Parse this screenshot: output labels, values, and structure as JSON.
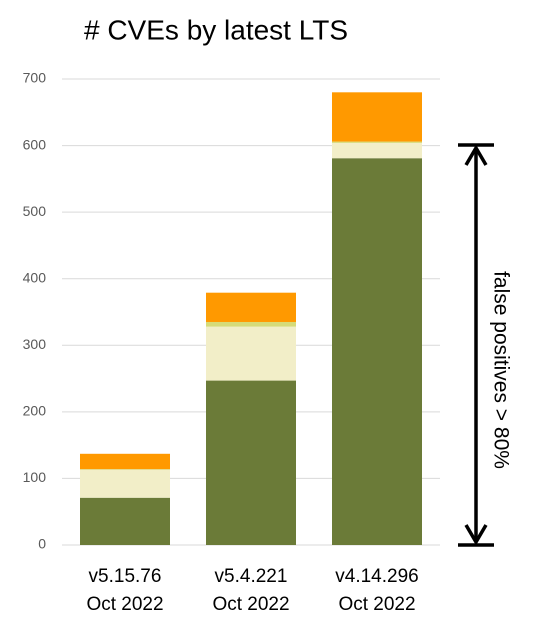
{
  "chart_data": {
    "type": "stacked_bar",
    "title": "# CVEs by latest LTS",
    "categories": [
      [
        "v5.15.76",
        "Oct 2022"
      ],
      [
        "v5.4.221",
        "Oct 2022"
      ],
      [
        "v4.14.296",
        "Oct 2022"
      ]
    ],
    "series": [
      {
        "color": "#6b7b38",
        "values": [
          71,
          247,
          581
        ]
      },
      {
        "color": "#f2eec8",
        "values": [
          42,
          81,
          23
        ]
      },
      {
        "color": "#d6db78",
        "values": [
          1,
          7,
          2
        ]
      },
      {
        "color": "#ff9900",
        "values": [
          23,
          44,
          74
        ]
      }
    ],
    "ylim": [
      0,
      700
    ],
    "yticks": [
      0,
      100,
      200,
      300,
      400,
      500,
      600,
      700
    ],
    "grid": true,
    "annotation": "false positives > 80%"
  }
}
